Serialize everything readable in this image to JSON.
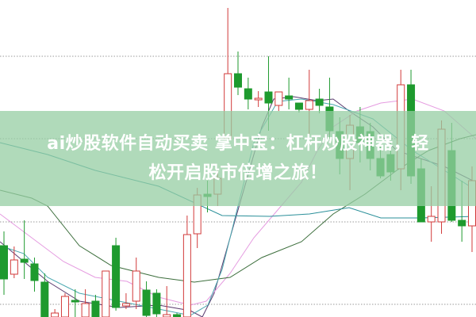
{
  "banner": {
    "line1": "ai炒股软件自动买卖 掌中宝：杠杆炒股神器，轻",
    "line2": "松开启股市倍增之旅！"
  },
  "chart_data": {
    "type": "candlestick",
    "title": "",
    "xlabel": "",
    "ylabel": "",
    "ylim": [
      0,
      400
    ],
    "grid": "horizontal-dotted",
    "gridlines": [
      329,
      225,
      120,
      16
    ],
    "colors": {
      "up": "#d23a3a",
      "down": "#1e9a2e",
      "grid": "#999999"
    },
    "candles": [
      {
        "o": 90,
        "c": 48,
        "h": 108,
        "l": 28
      },
      {
        "o": 54,
        "c": 72,
        "h": 89,
        "l": 49
      },
      {
        "o": 73,
        "c": 69,
        "h": 122,
        "l": 48
      },
      {
        "o": 67,
        "c": 46,
        "h": 75,
        "l": 32
      },
      {
        "o": 44,
        "c": 0,
        "h": 55,
        "l": 0
      },
      {
        "o": 0,
        "c": 5,
        "h": 10,
        "l": 0
      },
      {
        "o": 0,
        "c": 26,
        "h": 30,
        "l": 0
      },
      {
        "o": 21,
        "c": 19,
        "h": 35,
        "l": 0
      },
      {
        "o": 0,
        "c": 17,
        "h": 35,
        "l": 0
      },
      {
        "o": 20,
        "c": 0,
        "h": 28,
        "l": 0
      },
      {
        "o": 0,
        "c": 58,
        "h": 58,
        "l": 0
      },
      {
        "o": 90,
        "c": 12,
        "h": 100,
        "l": 8
      },
      {
        "o": 14,
        "c": 17,
        "h": 30,
        "l": 10
      },
      {
        "o": 20,
        "c": 58,
        "h": 75,
        "l": 10
      },
      {
        "o": 34,
        "c": 2,
        "h": 45,
        "l": 0
      },
      {
        "o": 30,
        "c": 4,
        "h": 35,
        "l": 0
      },
      {
        "o": 0,
        "c": 3,
        "h": 39,
        "l": 0
      },
      {
        "o": 3,
        "c": 0,
        "h": 5,
        "l": 0
      },
      {
        "o": 0,
        "c": 104,
        "h": 128,
        "l": 0
      },
      {
        "o": 105,
        "c": 154,
        "h": 163,
        "l": 87
      },
      {
        "o": 155,
        "c": 152,
        "h": 172,
        "l": 132
      },
      {
        "o": 155,
        "c": 175,
        "h": 187,
        "l": 140
      },
      {
        "o": 225,
        "c": 307,
        "h": 390,
        "l": 225
      },
      {
        "o": 307,
        "c": 290,
        "h": 335,
        "l": 280
      },
      {
        "o": 288,
        "c": 275,
        "h": 302,
        "l": 262
      },
      {
        "o": 274,
        "c": 276,
        "h": 285,
        "l": 265
      },
      {
        "o": 284,
        "c": 270,
        "h": 329,
        "l": 235
      },
      {
        "o": 267,
        "c": 284,
        "h": 283,
        "l": 260
      },
      {
        "o": 279,
        "c": 275,
        "h": 302,
        "l": 262
      },
      {
        "o": 270,
        "c": 262,
        "h": 270,
        "l": 258
      },
      {
        "o": 262,
        "c": 273,
        "h": 312,
        "l": 230
      },
      {
        "o": 275,
        "c": 267,
        "h": 288,
        "l": 257
      },
      {
        "o": 265,
        "c": 235,
        "h": 302,
        "l": 225
      },
      {
        "o": 234,
        "c": 200,
        "h": 252,
        "l": 180
      },
      {
        "o": 200,
        "c": 242,
        "h": 255,
        "l": 160
      },
      {
        "o": 240,
        "c": 220,
        "h": 265,
        "l": 195
      },
      {
        "o": 234,
        "c": 200,
        "h": 245,
        "l": 185
      },
      {
        "o": 200,
        "c": 178,
        "h": 215,
        "l": 175
      },
      {
        "o": 205,
        "c": 183,
        "h": 220,
        "l": 172
      },
      {
        "o": 187,
        "c": 293,
        "h": 312,
        "l": 160
      },
      {
        "o": 293,
        "c": 178,
        "h": 312,
        "l": 168
      },
      {
        "o": 187,
        "c": 120,
        "h": 200,
        "l": 120
      },
      {
        "o": 120,
        "c": 127,
        "h": 165,
        "l": 95
      },
      {
        "o": 120,
        "c": 237,
        "h": 248,
        "l": 105
      },
      {
        "o": 210,
        "c": 122,
        "h": 245,
        "l": 120
      },
      {
        "o": 122,
        "c": 115,
        "h": 172,
        "l": 95
      },
      {
        "o": 115,
        "c": 172,
        "h": 190,
        "l": 82
      }
    ],
    "moving_averages": [
      {
        "color": "#5a3a6e",
        "x": [
          0,
          30,
          60,
          100,
          150,
          200,
          240,
          255,
          270,
          290,
          310,
          330,
          345,
          370,
          400,
          420,
          440,
          470,
          500,
          530,
          560,
          600
        ],
        "y": [
          95,
          70,
          45,
          20,
          12,
          15,
          8,
          0,
          30,
          100,
          170,
          240,
          275,
          278,
          273,
          275,
          260,
          240,
          210,
          200,
          190,
          170
        ]
      },
      {
        "color": "#e59be0",
        "x": [
          0,
          40,
          80,
          120,
          160,
          200,
          240,
          260,
          290,
          320,
          350,
          380,
          400,
          420,
          450,
          480,
          520,
          560,
          600
        ],
        "y": [
          130,
          100,
          70,
          50,
          45,
          25,
          15,
          20,
          55,
          100,
          135,
          170,
          210,
          240,
          260,
          270,
          275,
          260,
          225
        ]
      },
      {
        "color": "#3c6e3c",
        "x": [
          0,
          40,
          60,
          100,
          140,
          200,
          245,
          290,
          330,
          380,
          420,
          460,
          500,
          540,
          580,
          600
        ],
        "y": [
          160,
          150,
          140,
          90,
          65,
          50,
          44,
          50,
          75,
          95,
          130,
          155,
          185,
          210,
          225,
          230
        ]
      },
      {
        "color": "#2a8f99",
        "x": [
          0,
          60,
          120,
          200,
          280,
          340,
          390,
          440,
          480,
          530,
          600
        ],
        "y": [
          220,
          205,
          185,
          165,
          128,
          127,
          130,
          138,
          125,
          125,
          127
        ]
      },
      {
        "color": "#4aa8b0",
        "x": [
          0,
          30,
          60,
          100,
          150,
          200,
          240,
          262,
          280,
          300,
          320,
          350,
          380,
          420,
          470,
          520,
          560,
          600
        ],
        "y": [
          90,
          80,
          50,
          30,
          20,
          10,
          2,
          15,
          60,
          140,
          220,
          272,
          275,
          268,
          250,
          210,
          185,
          160
        ]
      }
    ]
  }
}
